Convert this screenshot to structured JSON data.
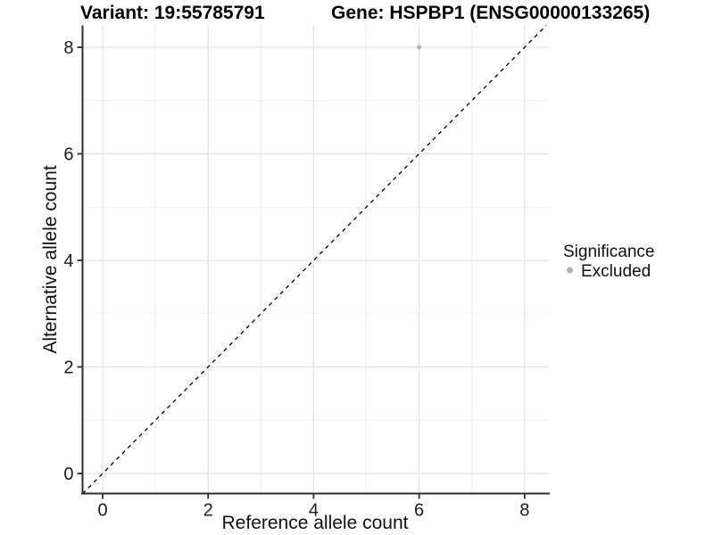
{
  "header": {
    "variant_title": "Variant: 19:55785791",
    "gene_title": "Gene: HSPBP1 (ENSG00000133265)"
  },
  "legend": {
    "title": "Significance",
    "items": [
      {
        "label": "Excluded",
        "marker": "circle-icon",
        "color": "#b2b2b2"
      }
    ]
  },
  "colors": {
    "background": "#ffffff",
    "grid_major": "#e4e4e4",
    "grid_minor": "#f2f2f2",
    "axis_line": "#2e2e2e",
    "tick_mark": "#2e2e2e",
    "tick_label": "#1c1c1c",
    "title_text": "#000000",
    "point": "#b2b2b2",
    "reference_line": "#000000"
  },
  "chart_data": {
    "type": "scatter",
    "title": "Variant: 19:55785791 | Gene: HSPBP1 (ENSG00000133265)",
    "xlabel": "Reference allele count",
    "ylabel": "Alternative allele count",
    "xlim": [
      -0.38,
      8.46
    ],
    "ylim": [
      -0.38,
      8.41
    ],
    "x_ticks": [
      0,
      2,
      4,
      6,
      8
    ],
    "y_ticks": [
      0,
      2,
      4,
      6,
      8
    ],
    "x_minor_ticks": [
      1,
      3,
      5,
      7
    ],
    "y_minor_ticks": [
      1,
      3,
      5,
      7
    ],
    "grid": "on",
    "legend_position": "right",
    "series": [
      {
        "name": "Excluded",
        "color": "#b2b2b2",
        "points": [
          {
            "x": 6,
            "y": 8
          }
        ]
      }
    ],
    "reference_line": {
      "kind": "identity y=x",
      "style": "dashed",
      "color": "#000000"
    }
  }
}
